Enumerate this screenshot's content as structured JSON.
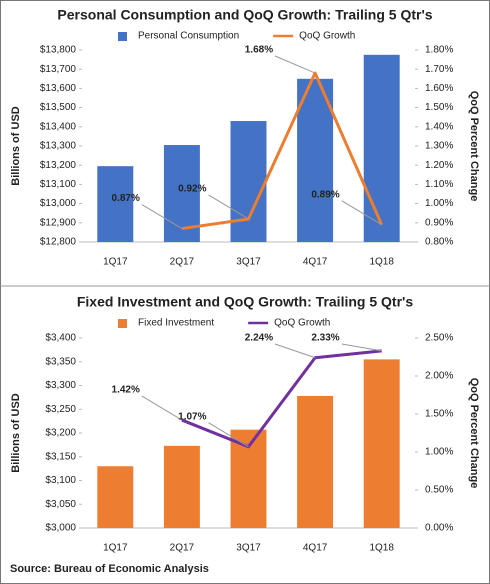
{
  "chart_data": [
    {
      "type": "combo",
      "title": "Personal Consumption and QoQ Growth: Trailing 5 Qtr's",
      "y_label": "Billions of USD",
      "y2_label": "QoQ Percent Change",
      "categories": [
        "1Q17",
        "2Q17",
        "3Q17",
        "4Q17",
        "1Q18"
      ],
      "series": [
        {
          "name": "Personal Consumption",
          "type": "bar",
          "color": "#4472c4",
          "values": [
            13195,
            13305,
            13430,
            13650,
            13775
          ]
        },
        {
          "name": "QoQ Growth",
          "type": "line",
          "axis": "y2",
          "color": "#ed7d31",
          "values": [
            null,
            0.87,
            0.92,
            1.68,
            0.89
          ],
          "value_labels": [
            null,
            "0.87%",
            "0.92%",
            "1.68%",
            "0.89%"
          ]
        }
      ],
      "ylim": [
        12800,
        13800
      ],
      "yticks": [
        {
          "value": 12800,
          "label": "$12,800"
        },
        {
          "value": 12900,
          "label": "$12,900"
        },
        {
          "value": 13000,
          "label": "$13,000"
        },
        {
          "value": 13100,
          "label": "$13,100"
        },
        {
          "value": 13200,
          "label": "$13,200"
        },
        {
          "value": 13300,
          "label": "$13,300"
        },
        {
          "value": 13400,
          "label": "$13,400"
        },
        {
          "value": 13500,
          "label": "$13,500"
        },
        {
          "value": 13600,
          "label": "$13,600"
        },
        {
          "value": 13700,
          "label": "$13,700"
        },
        {
          "value": 13800,
          "label": "$13,800"
        }
      ],
      "y2lim": [
        0.8,
        1.8
      ],
      "y2ticks": [
        {
          "value": 0.8,
          "label": "0.80%"
        },
        {
          "value": 0.9,
          "label": "0.90%"
        },
        {
          "value": 1.0,
          "label": "1.00%"
        },
        {
          "value": 1.1,
          "label": "1.10%"
        },
        {
          "value": 1.2,
          "label": "1.20%"
        },
        {
          "value": 1.3,
          "label": "1.30%"
        },
        {
          "value": 1.4,
          "label": "1.40%"
        },
        {
          "value": 1.5,
          "label": "1.50%"
        },
        {
          "value": 1.6,
          "label": "1.60%"
        },
        {
          "value": 1.7,
          "label": "1.70%"
        },
        {
          "value": 1.8,
          "label": "1.80%"
        }
      ],
      "legend": "top"
    },
    {
      "type": "combo",
      "title": "Fixed Investment and QoQ Growth: Trailing 5 Qtr's",
      "y_label": "Billions of USD",
      "y2_label": "QoQ Percent Change",
      "categories": [
        "1Q17",
        "2Q17",
        "3Q17",
        "4Q17",
        "1Q18"
      ],
      "series": [
        {
          "name": "Fixed Investment",
          "type": "bar",
          "color": "#ed7d31",
          "values": [
            3130,
            3173,
            3207,
            3278,
            3355
          ]
        },
        {
          "name": "QoQ Growth",
          "type": "line",
          "axis": "y2",
          "color": "#7030a0",
          "values": [
            null,
            1.42,
            1.07,
            2.24,
            2.33
          ],
          "value_labels": [
            null,
            "1.42%",
            "1.07%",
            "2.24%",
            "2.33%"
          ]
        }
      ],
      "ylim": [
        3000,
        3400
      ],
      "yticks": [
        {
          "value": 3000,
          "label": "$3,000"
        },
        {
          "value": 3050,
          "label": "$3,050"
        },
        {
          "value": 3100,
          "label": "$3,100"
        },
        {
          "value": 3150,
          "label": "$3,150"
        },
        {
          "value": 3200,
          "label": "$3,200"
        },
        {
          "value": 3250,
          "label": "$3,250"
        },
        {
          "value": 3300,
          "label": "$3,300"
        },
        {
          "value": 3350,
          "label": "$3,350"
        },
        {
          "value": 3400,
          "label": "$3,400"
        }
      ],
      "y2lim": [
        0,
        2.5
      ],
      "y2ticks": [
        {
          "value": 0,
          "label": "0.00%"
        },
        {
          "value": 0.5,
          "label": "0.50%"
        },
        {
          "value": 1.0,
          "label": "1.00%"
        },
        {
          "value": 1.5,
          "label": "1.50%"
        },
        {
          "value": 2.0,
          "label": "2.00%"
        },
        {
          "value": 2.5,
          "label": "2.50%"
        }
      ],
      "legend": "top"
    }
  ],
  "source": "Source: Bureau of Economic Analysis"
}
